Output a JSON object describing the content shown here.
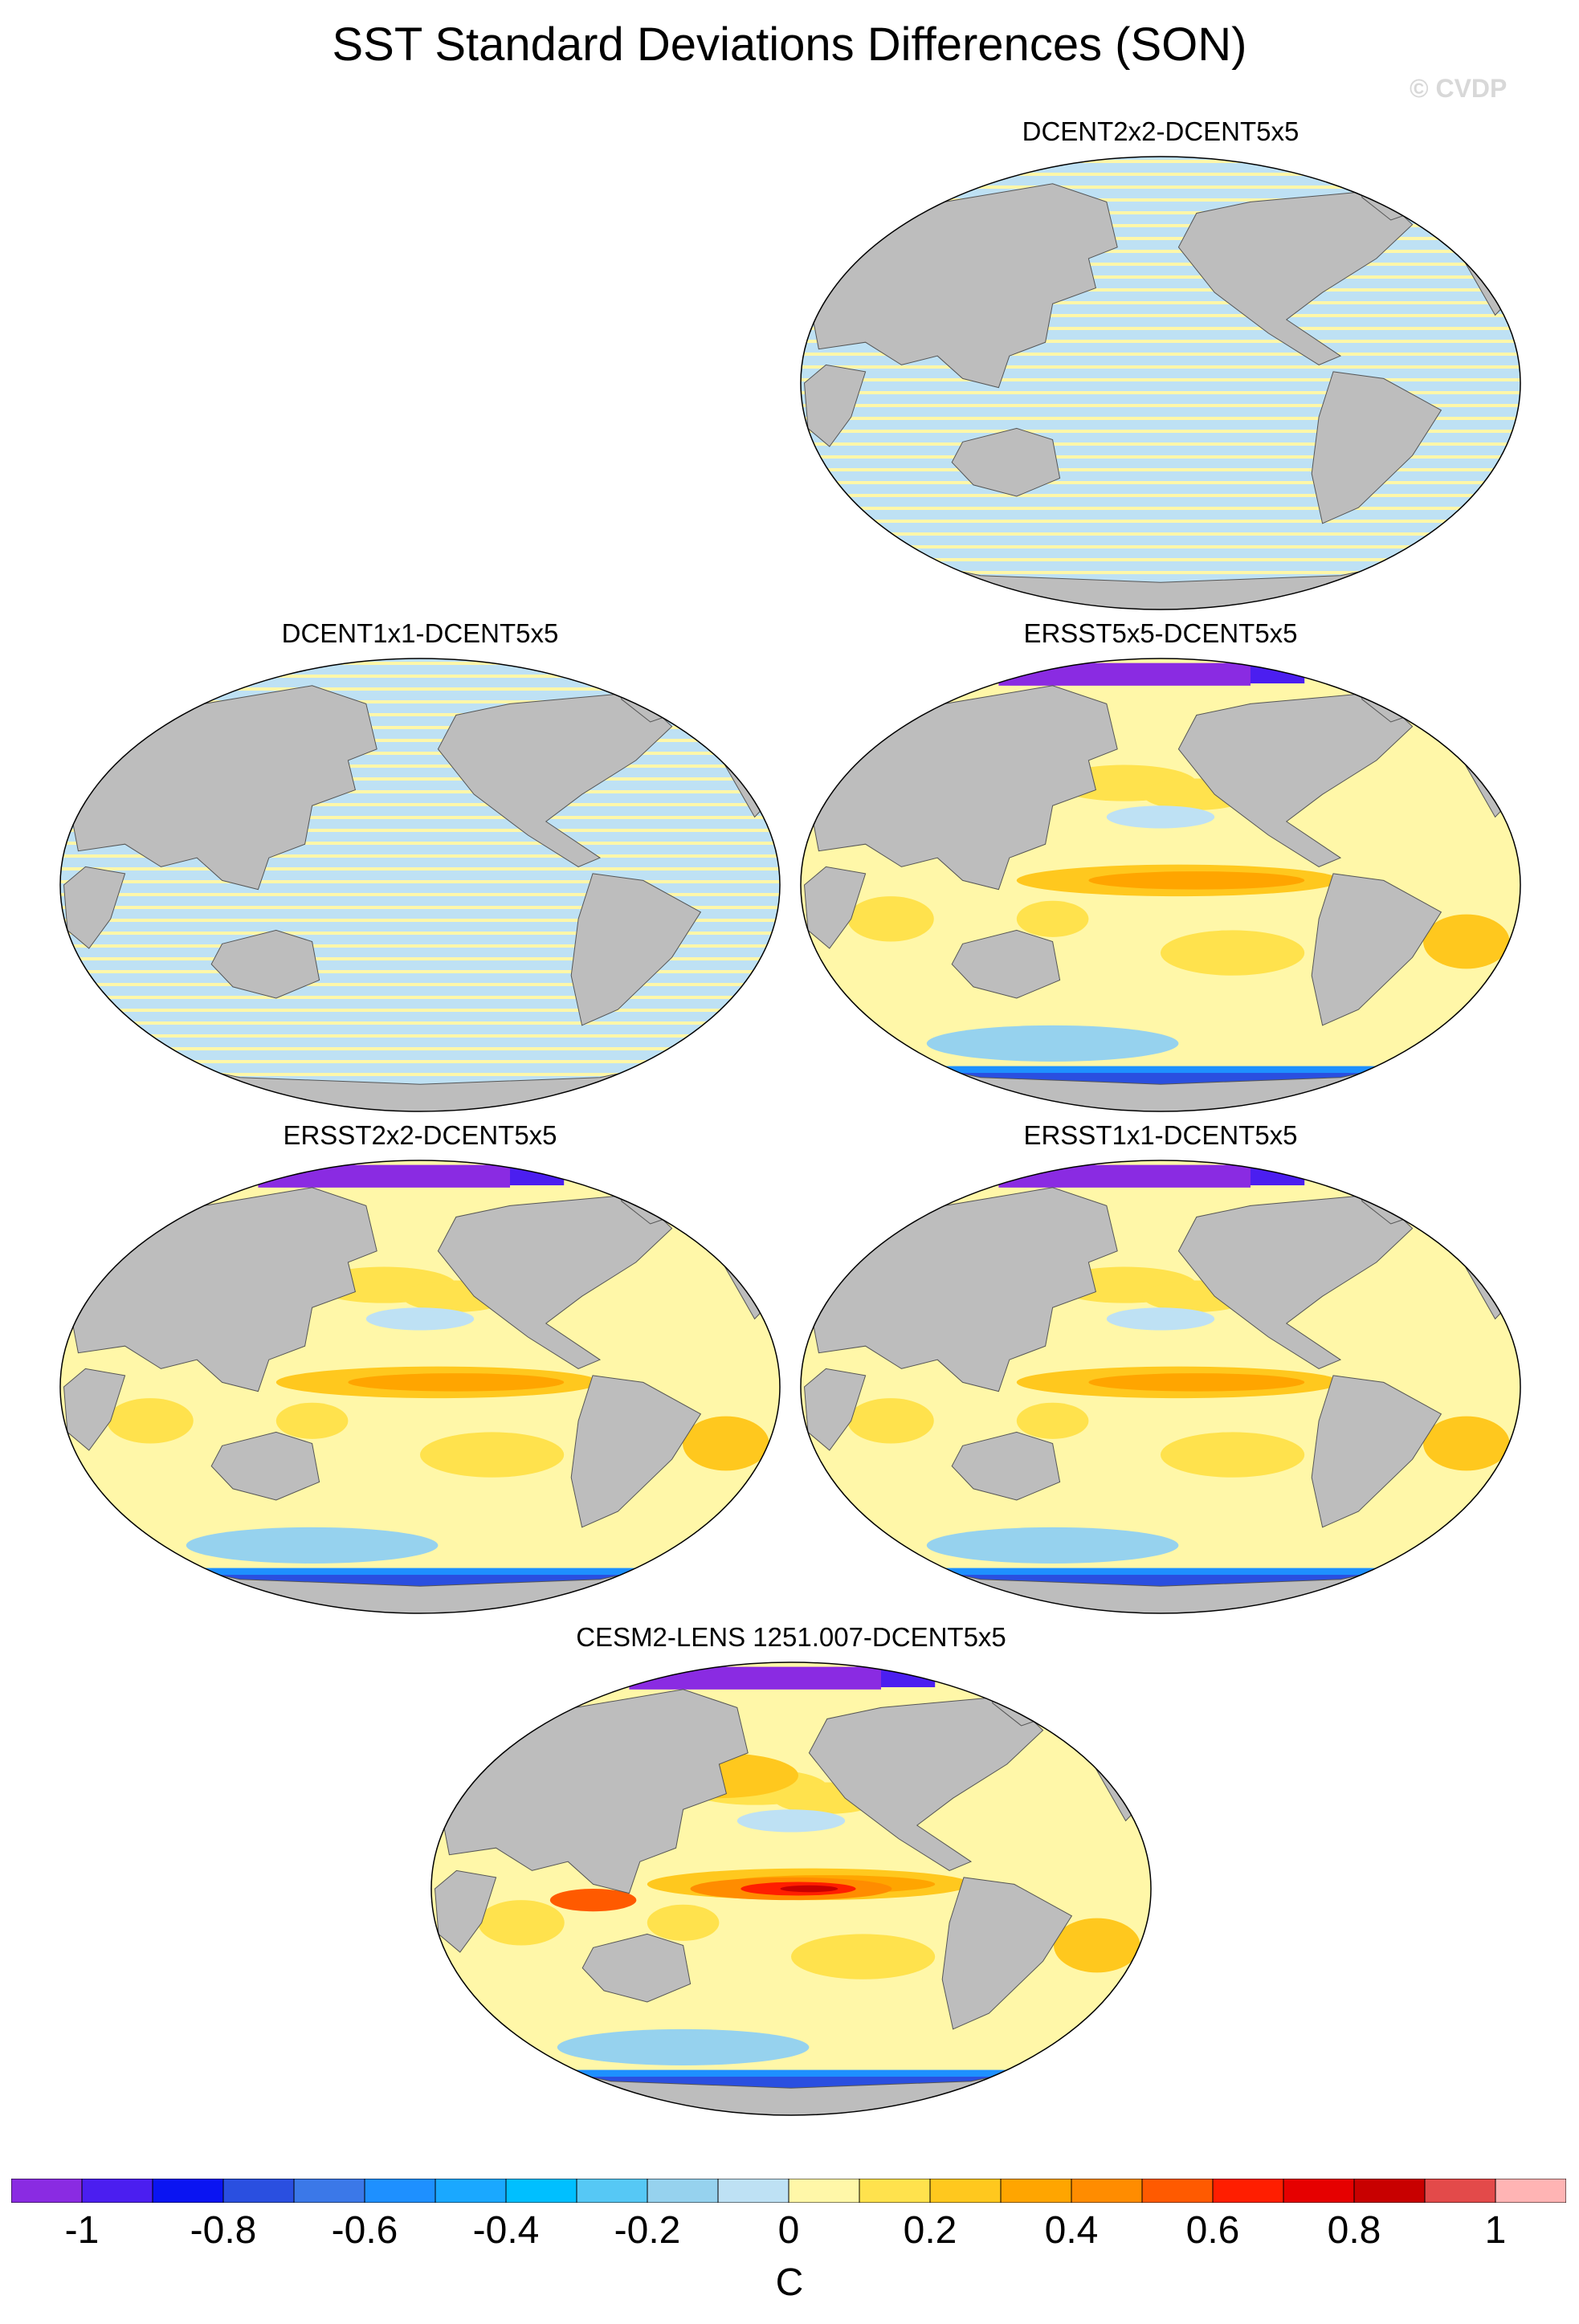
{
  "figure": {
    "title": "SST Standard Deviations Differences (SON)",
    "watermark": "© CVDP"
  },
  "panels": [
    {
      "title": "DCENT2x2-DCENT5x5",
      "pattern": "stripes"
    },
    {
      "title": "DCENT1x1-DCENT5x5",
      "pattern": "stripes"
    },
    {
      "title": "ERSST5x5-DCENT5x5",
      "pattern": "anomaly"
    },
    {
      "title": "ERSST2x2-DCENT5x5",
      "pattern": "anomaly"
    },
    {
      "title": "ERSST1x1-DCENT5x5",
      "pattern": "anomaly"
    },
    {
      "title": "CESM2-LENS 1251.007-DCENT5x5",
      "pattern": "model"
    }
  ],
  "colorbar": {
    "units": "C",
    "tick_labels": [
      "-1",
      "-0.8",
      "-0.6",
      "-0.4",
      "-0.2",
      "0",
      "0.2",
      "0.4",
      "0.6",
      "0.8",
      "1"
    ],
    "colors": [
      "#8a2be2",
      "#4b1ef0",
      "#0a14f2",
      "#2a4fe0",
      "#3b78e8",
      "#1e90ff",
      "#1aa8ff",
      "#00bfff",
      "#56c8f5",
      "#96d2ee",
      "#bee1f4",
      "#fff7a8",
      "#ffe24d",
      "#ffc81e",
      "#ffa500",
      "#ff8c00",
      "#ff5a00",
      "#ff1e00",
      "#e60000",
      "#c80000",
      "#e34a4a",
      "#ffb4b4"
    ]
  },
  "map_colors": {
    "land": "#bdbdbd",
    "ocean_background": "#ffffff",
    "near_zero_negative": "#bee1f4",
    "near_zero_positive": "#fff7a8"
  }
}
